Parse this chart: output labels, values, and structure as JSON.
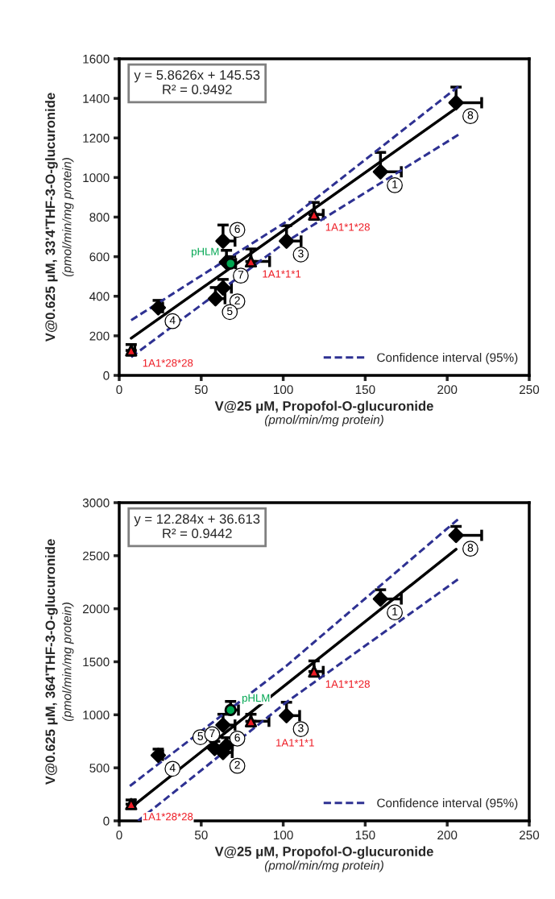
{
  "chart_data": [
    {
      "type": "scatter",
      "xlabel": "V@25 μM, Propofol-O-glucuronide\n(pmol/min/mg protein)",
      "ylabel": "V@0.625 μM, 33'4'THF-3-O-glucuronide\n(pmol/min/mg protein)",
      "xlim": [
        0,
        250
      ],
      "xticks": [
        0,
        50,
        100,
        150,
        200,
        250
      ],
      "ylim": [
        0,
        1600
      ],
      "yticks": [
        0,
        200,
        400,
        600,
        800,
        1000,
        1200,
        1400,
        1600
      ],
      "grid": false,
      "legend": "bottom right",
      "annotations": [
        "y = 5.8626x + 145.53\nR² = 0.9492",
        {
          "text": "1",
          "x": 159.3,
          "y": 1029
        },
        {
          "text": "2",
          "x": 63.3,
          "y": 442
        },
        {
          "text": "3",
          "x": 102,
          "y": 679
        },
        {
          "text": "4",
          "x": 23.8,
          "y": 342
        },
        {
          "text": "5",
          "x": 58.7,
          "y": 388
        },
        {
          "text": "6",
          "x": 63.3,
          "y": 679
        },
        {
          "text": "7",
          "x": 65.4,
          "y": 572
        },
        {
          "text": "8",
          "x": 205.4,
          "y": 1378
        },
        {
          "text": "1A1*28*28",
          "x": 7.3,
          "y": 126
        },
        {
          "text": "1A1*1*1",
          "x": 80.3,
          "y": 576
        },
        {
          "text": "1A1*1*28",
          "x": 118.8,
          "y": 813
        },
        {
          "text": "pHLM",
          "x": 67.9,
          "y": 565
        }
      ],
      "series": [
        {
          "type": "line",
          "color": "#000000",
          "line_style": "solid",
          "marker": "none",
          "x": [
            7.3,
            205.4
          ],
          "values": [
            188,
            1350
          ]
        },
        {
          "type": "line",
          "name": "Confidence interval (95%)",
          "color": "#2e3192",
          "line_style": "dashed",
          "marker": "none",
          "x": [
            7.3,
            101.9,
            206.8
          ],
          "values": [
            279,
            777,
            1460
          ]
        },
        {
          "type": "line",
          "color": "#2e3192",
          "line_style": "dashed",
          "marker": "none",
          "x": [
            7.3,
            101.9,
            206.8
          ],
          "values": [
            93,
            676,
            1216
          ]
        },
        {
          "color": "#000000",
          "marker": "diamond",
          "x": [
            159.3,
            63.3,
            102,
            23.8,
            58.7,
            63.3,
            65.4,
            205.4
          ],
          "values": [
            1029,
            442,
            679,
            342,
            388,
            679,
            572,
            1378
          ],
          "errors": [
            [
              1029,
              1127
            ],
            [
              442,
              485
            ],
            [
              679,
              757
            ],
            [
              342,
              379
            ],
            [
              388,
              444
            ],
            [
              679,
              760
            ],
            [
              572,
              632
            ],
            [
              1378,
              1457
            ]
          ],
          "xerrors": [
            [
              159.3,
              172
            ],
            [
              63.3,
              68.4
            ],
            [
              102,
              110.9
            ],
            [
              23.8,
              26.5
            ],
            [
              58.7,
              64.5
            ],
            [
              63.3,
              70.6
            ],
            [
              65.4,
              69
            ],
            [
              205.4,
              221
            ]
          ]
        },
        {
          "color": "#ee1c25",
          "marker": "triangle",
          "x": [
            7.3,
            80.3,
            118.8
          ],
          "values": [
            126,
            576,
            813
          ],
          "errors": [
            [
              126,
              156
            ],
            [
              576,
              639
            ],
            [
              813,
              874
            ]
          ],
          "xerrors": [
            [
              7.3,
              9.5
            ],
            [
              80.3,
              91.7
            ],
            [
              118.8,
              124.4
            ]
          ]
        },
        {
          "color": "#00a651",
          "marker": "circle",
          "x": [
            67.9
          ],
          "values": [
            565
          ],
          "errors": [
            [
              565,
              600
            ]
          ],
          "xerrors": [
            [
              67.9,
              71
            ]
          ]
        }
      ]
    },
    {
      "type": "scatter",
      "xlabel": "V@25 μM, Propofol-O-glucuronide\n(pmol/min/mg protein)",
      "ylabel": "V@0.625 μM, 364'THF-3-O-glucuronide\n(pmol/min/mg protein)",
      "xlim": [
        0,
        250
      ],
      "xticks": [
        0,
        50,
        100,
        150,
        200,
        250
      ],
      "ylim": [
        0,
        3000
      ],
      "yticks": [
        0,
        500,
        1000,
        1500,
        2000,
        2500,
        3000
      ],
      "grid": false,
      "legend": "bottom right",
      "annotations": [
        "y = 12.284x + 36.613\nR² = 0.9442",
        {
          "text": "1",
          "x": 159.3,
          "y": 2092
        },
        {
          "text": "2",
          "x": 63.3,
          "y": 645
        },
        {
          "text": "3",
          "x": 102,
          "y": 992
        },
        {
          "text": "4",
          "x": 23.8,
          "y": 618
        },
        {
          "text": "5",
          "x": 58.2,
          "y": 684
        },
        {
          "text": "6",
          "x": 63.3,
          "y": 903
        },
        {
          "text": "7",
          "x": 65.4,
          "y": 711
        },
        {
          "text": "8",
          "x": 205.4,
          "y": 2692
        },
        {
          "text": "1A1*28*28",
          "x": 7.3,
          "y": 158
        },
        {
          "text": "1A1*1*1",
          "x": 80.3,
          "y": 939
        },
        {
          "text": "1A1*1*28",
          "x": 118.8,
          "y": 1408
        },
        {
          "text": "pHLM",
          "x": 67.9,
          "y": 1045
        }
      ],
      "series": [
        {
          "type": "line",
          "color": "#000000",
          "line_style": "solid",
          "marker": "none",
          "x": [
            7.3,
            205.4
          ],
          "values": [
            126,
            2560
          ]
        },
        {
          "type": "line",
          "name": "Confidence interval (95%)",
          "color": "#2e3192",
          "line_style": "dashed",
          "marker": "none",
          "x": [
            6.5,
            101.9,
            206.5
          ],
          "values": [
            329,
            1461,
            2842
          ]
        },
        {
          "type": "line",
          "color": "#2e3192",
          "line_style": "dashed",
          "marker": "none",
          "x": [
            11.5,
            101.9,
            206.5
          ],
          "values": [
            0,
            1118,
            2276
          ]
        },
        {
          "color": "#000000",
          "marker": "diamond",
          "x": [
            159.3,
            63.3,
            102,
            23.8,
            58.2,
            63.3,
            65.4,
            205.4
          ],
          "values": [
            2092,
            645,
            992,
            618,
            684,
            903,
            711,
            2692
          ],
          "errors": [
            [
              2092,
              2179
            ],
            null,
            [
              992,
              1118
            ],
            [
              618,
              676
            ],
            [
              684,
              750
            ],
            [
              903,
              1005
            ],
            [
              711,
              784
            ],
            [
              2692,
              2776
            ]
          ],
          "xerrors": [
            [
              159.3,
              172
            ],
            [
              63.3,
              68.9
            ],
            [
              102,
              110
            ],
            [
              23.8,
              26.5
            ],
            null,
            [
              63.3,
              70.6
            ],
            [
              65.4,
              69
            ],
            [
              205.4,
              221
            ]
          ]
        },
        {
          "color": "#ee1c25",
          "marker": "triangle",
          "x": [
            7.3,
            80.3,
            118.8
          ],
          "values": [
            158,
            939,
            1408
          ],
          "errors": [
            [
              158,
              197
            ],
            [
              939,
              1005
            ],
            [
              1408,
              1508
            ]
          ],
          "xerrors": [
            [
              7.3,
              9.5
            ],
            [
              80.3,
              91.3
            ],
            [
              118.8,
              124.4
            ]
          ]
        },
        {
          "color": "#00a651",
          "marker": "circle",
          "x": [
            67.9
          ],
          "values": [
            1045
          ],
          "errors": [
            [
              1045,
              1126
            ]
          ],
          "xerrors": [
            [
              67.9,
              72.7
            ]
          ]
        }
      ]
    }
  ]
}
